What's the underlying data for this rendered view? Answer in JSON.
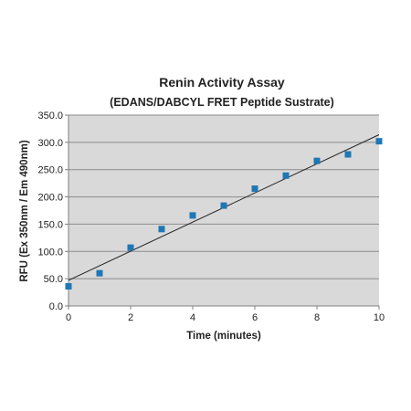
{
  "chart_data": {
    "type": "scatter",
    "title": "Renin Activity  Assay",
    "subtitle": "(EDANS/DABCYL FRET Peptide Sustrate)",
    "xlabel": "Time (minutes)",
    "ylabel": "RFU (Ex 350nm / Em 490nm)",
    "xlim": [
      0,
      10
    ],
    "ylim": [
      0,
      350
    ],
    "x_ticks": [
      "0",
      "2",
      "4",
      "6",
      "8",
      "10"
    ],
    "y_ticks": [
      "0.0",
      "50.0",
      "100.0",
      "150.0",
      "200.0",
      "250.0",
      "300.0",
      "350.0"
    ],
    "grid": "horizontal",
    "legend": "none",
    "colors": {
      "plot_background": "#d9d9d9",
      "marker": "#1f77b4",
      "trendline": "#222222",
      "gridline": "#8c8c8c"
    },
    "series": [
      {
        "x": [
          0,
          1,
          2,
          3,
          4,
          5,
          6,
          7,
          8,
          9,
          10
        ],
        "y": [
          36,
          60,
          107,
          141,
          166,
          184,
          215,
          239,
          266,
          278,
          302
        ]
      }
    ],
    "trendline": {
      "type": "linear",
      "x": [
        0,
        10
      ],
      "y": [
        47,
        314
      ]
    }
  }
}
